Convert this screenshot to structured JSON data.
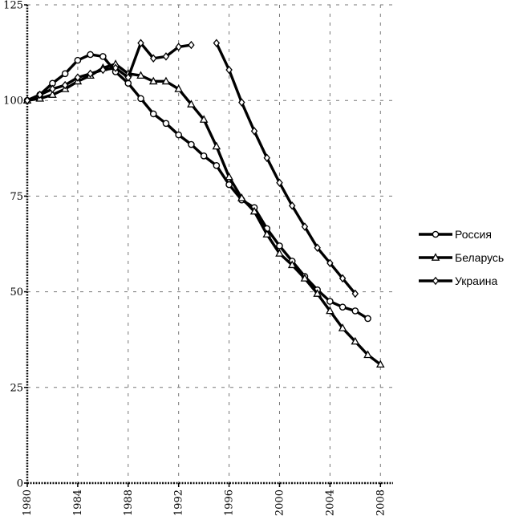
{
  "chart_data": {
    "type": "line",
    "title": "",
    "xlabel": "",
    "ylabel": "",
    "xlim": [
      1980,
      2009
    ],
    "ylim": [
      0,
      125
    ],
    "x_ticks": [
      1980,
      1984,
      1988,
      1992,
      1996,
      2000,
      2004,
      2008
    ],
    "x_tick_labels": [
      "1980",
      "1984",
      "1988",
      "1992",
      "1996",
      "2000",
      "2004",
      "2008"
    ],
    "y_ticks": [
      0,
      25,
      50,
      75,
      100,
      125
    ],
    "y_tick_labels": [
      "0",
      "25",
      "50",
      "75",
      "100",
      "125"
    ],
    "grid": "dashed",
    "legend_position": "right",
    "series": [
      {
        "name": "Россия",
        "marker": "circle",
        "color": "#000000",
        "points": [
          [
            1980,
            100
          ],
          [
            1981,
            101.5
          ],
          [
            1982,
            104.5
          ],
          [
            1983,
            107
          ],
          [
            1984,
            110.5
          ],
          [
            1985,
            112
          ],
          [
            1986,
            111.5
          ],
          [
            1987,
            107.5
          ],
          [
            1988,
            104.5
          ],
          [
            1989,
            100.5
          ],
          [
            1990,
            96.5
          ],
          [
            1991,
            94
          ],
          [
            1992,
            91
          ],
          [
            1993,
            88.5
          ],
          [
            1994,
            85.5
          ],
          [
            1995,
            83
          ],
          [
            1996,
            78
          ],
          [
            1997,
            74
          ],
          [
            1998,
            72
          ],
          [
            1999,
            66.5
          ],
          [
            2000,
            62
          ],
          [
            2001,
            58
          ],
          [
            2002,
            54
          ],
          [
            2003,
            50.5
          ],
          [
            2004,
            47.5
          ],
          [
            2005,
            46
          ],
          [
            2006,
            45
          ],
          [
            2007,
            43
          ]
        ]
      },
      {
        "name": "Беларусь",
        "marker": "triangle",
        "color": "#000000",
        "points": [
          [
            1980,
            100
          ],
          [
            1981,
            100.5
          ],
          [
            1982,
            101.5
          ],
          [
            1983,
            103
          ],
          [
            1984,
            105
          ],
          [
            1985,
            106.5
          ],
          [
            1986,
            108.5
          ],
          [
            1987,
            109.5
          ],
          [
            1988,
            107
          ],
          [
            1989,
            106.5
          ],
          [
            1990,
            105
          ],
          [
            1991,
            105
          ],
          [
            1992,
            103
          ],
          [
            1993,
            99
          ],
          [
            1994,
            95
          ],
          [
            1995,
            88
          ],
          [
            1996,
            80
          ],
          [
            1997,
            74.5
          ],
          [
            1998,
            71
          ],
          [
            1999,
            65
          ],
          [
            2000,
            60
          ],
          [
            2001,
            57
          ],
          [
            2002,
            53.5
          ],
          [
            2003,
            49.5
          ],
          [
            2004,
            45
          ],
          [
            2005,
            40.5
          ],
          [
            2006,
            37
          ],
          [
            2007,
            33.5
          ],
          [
            2008,
            31
          ]
        ]
      },
      {
        "name": "Украина",
        "marker": "diamond",
        "color": "#000000",
        "segments": [
          [
            [
              1980,
              100
            ],
            [
              1981,
              101.5
            ],
            [
              1982,
              103
            ],
            [
              1983,
              104
            ],
            [
              1984,
              106
            ],
            [
              1985,
              107
            ],
            [
              1986,
              108
            ],
            [
              1987,
              108.5
            ],
            [
              1988,
              106
            ],
            [
              1989,
              115
            ],
            [
              1990,
              111
            ],
            [
              1991,
              111.5
            ],
            [
              1992,
              114
            ],
            [
              1993,
              114.5
            ]
          ],
          [
            [
              1995,
              115
            ],
            [
              1996,
              108
            ],
            [
              1997,
              99.5
            ],
            [
              1998,
              92
            ],
            [
              1999,
              85
            ],
            [
              2000,
              78.5
            ],
            [
              2001,
              72.5
            ],
            [
              2002,
              67
            ],
            [
              2003,
              61.5
            ],
            [
              2004,
              57.5
            ],
            [
              2005,
              53.5
            ],
            [
              2006,
              49.5
            ]
          ]
        ]
      }
    ]
  }
}
